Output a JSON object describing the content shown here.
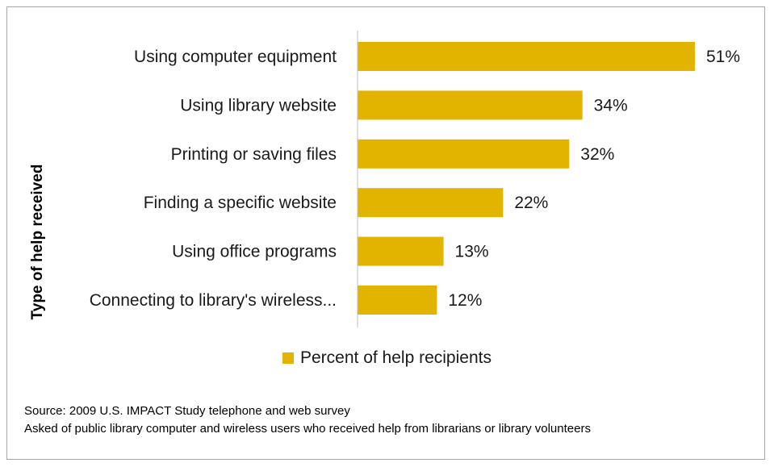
{
  "chart_data": {
    "type": "bar",
    "orientation": "horizontal",
    "categories": [
      "Using computer equipment",
      "Using library website",
      "Printing or saving files",
      "Finding a specific website",
      "Using office programs",
      "Connecting to library's wireless..."
    ],
    "value_labels": [
      "51%",
      "34%",
      "32%",
      "22%",
      "13%",
      "12%"
    ],
    "series": [
      {
        "name": "Percent of help recipients",
        "values": [
          51,
          34,
          32,
          22,
          13,
          12
        ]
      }
    ],
    "ylabel": "Type of help received",
    "xlim": [
      0,
      60
    ],
    "bar_color": "#e2b400",
    "grid": false,
    "legend_position": "bottom"
  },
  "notes": {
    "source": "Source: 2009 U.S. IMPACT Study telephone and web survey",
    "description": "Asked of public library computer and wireless users who received help from librarians or library volunteers"
  }
}
